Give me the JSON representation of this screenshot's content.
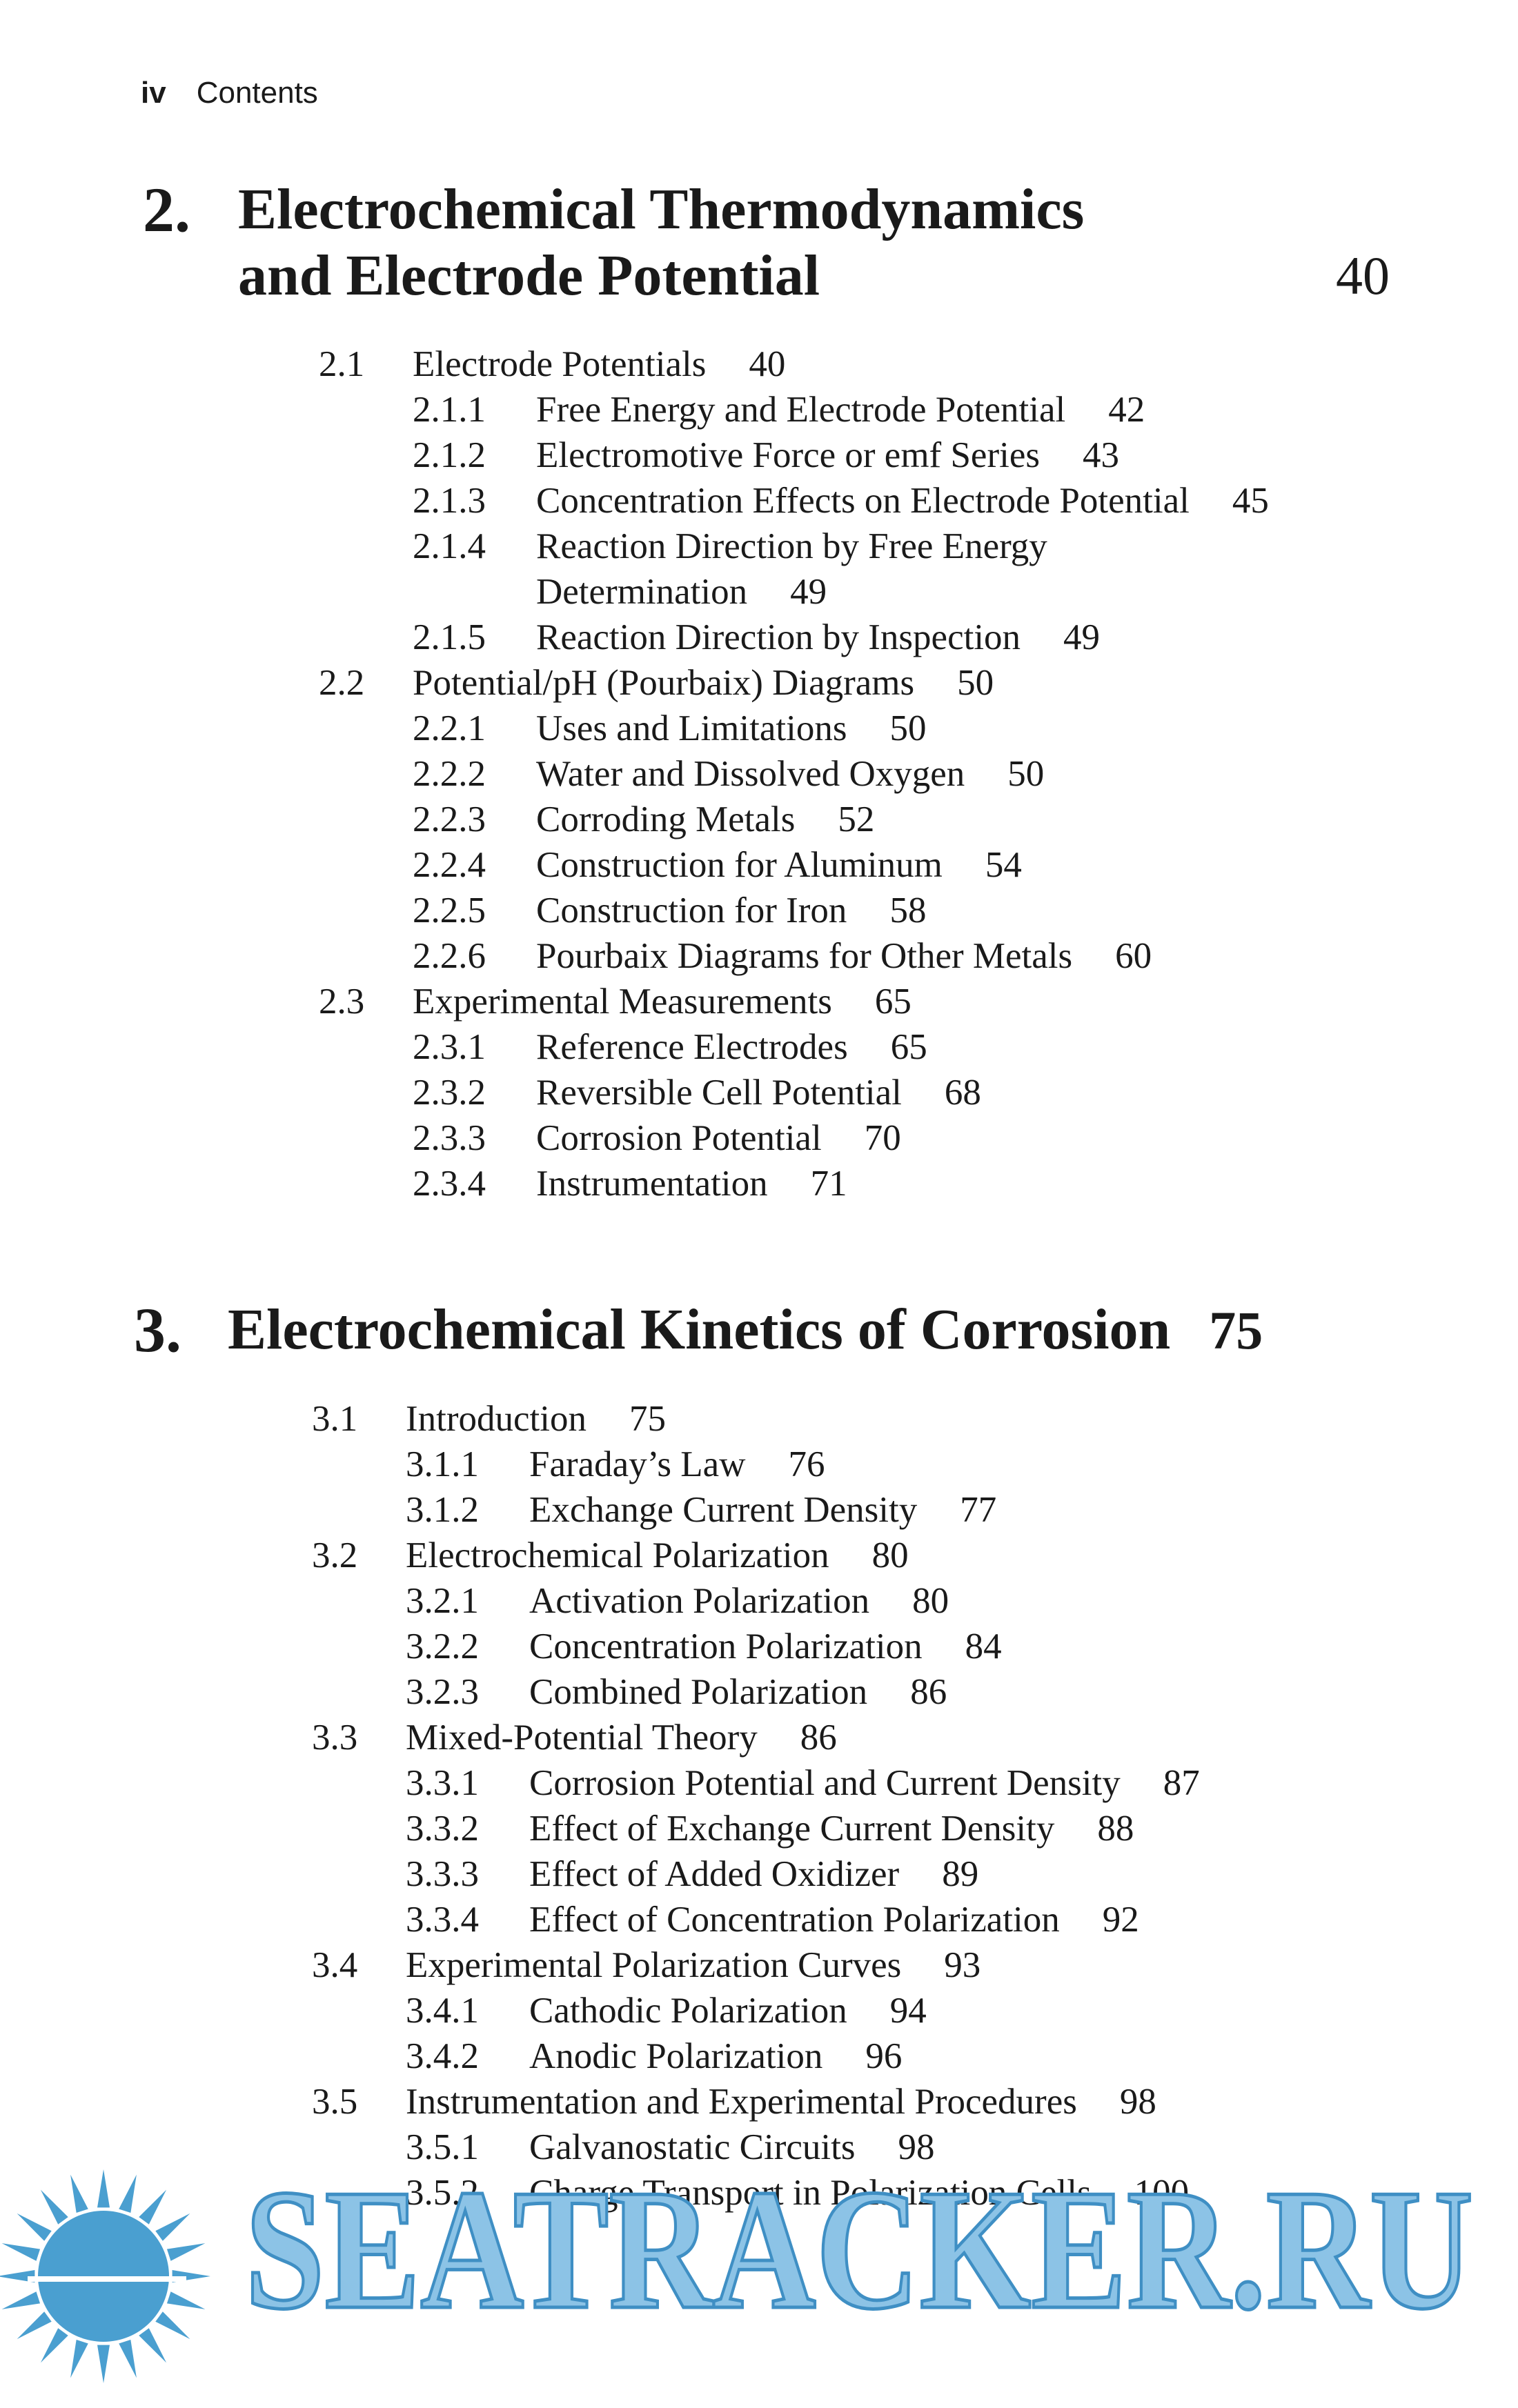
{
  "header": {
    "page": "iv",
    "title": "Contents"
  },
  "chapters": [
    {
      "number": "2.",
      "title": [
        "Electrochemical Thermodynamics",
        "and Electrode Potential"
      ],
      "page": 40,
      "sections": [
        {
          "number": "2.1",
          "title": "Electrode Potentials",
          "page": 40,
          "subsections": [
            {
              "number": "2.1.1",
              "title": "Free Energy and Electrode Potential",
              "page": 42
            },
            {
              "number": "2.1.2",
              "title": "Electromotive Force or emf Series",
              "page": 43
            },
            {
              "number": "2.1.3",
              "title": "Concentration Effects on Electrode Potential",
              "page": 45
            },
            {
              "number": "2.1.4",
              "title": [
                "Reaction Direction by Free Energy",
                "Determination"
              ],
              "page": 49
            },
            {
              "number": "2.1.5",
              "title": "Reaction Direction by Inspection",
              "page": 49
            }
          ]
        },
        {
          "number": "2.2",
          "title": "Potential/pH (Pourbaix) Diagrams",
          "page": 50,
          "subsections": [
            {
              "number": "2.2.1",
              "title": "Uses and Limitations",
              "page": 50
            },
            {
              "number": "2.2.2",
              "title": "Water and Dissolved Oxygen",
              "page": 50
            },
            {
              "number": "2.2.3",
              "title": "Corroding Metals",
              "page": 52
            },
            {
              "number": "2.2.4",
              "title": "Construction for Aluminum",
              "page": 54
            },
            {
              "number": "2.2.5",
              "title": "Construction for Iron",
              "page": 58
            },
            {
              "number": "2.2.6",
              "title": "Pourbaix Diagrams for Other Metals",
              "page": 60
            }
          ]
        },
        {
          "number": "2.3",
          "title": "Experimental Measurements",
          "page": 65,
          "subsections": [
            {
              "number": "2.3.1",
              "title": "Reference Electrodes",
              "page": 65
            },
            {
              "number": "2.3.2",
              "title": "Reversible Cell Potential",
              "page": 68
            },
            {
              "number": "2.3.3",
              "title": "Corrosion Potential",
              "page": 70
            },
            {
              "number": "2.3.4",
              "title": "Instrumentation",
              "page": 71
            }
          ]
        }
      ]
    },
    {
      "number": "3.",
      "title": "Electrochemical Kinetics of Corrosion",
      "page": 75,
      "sections": [
        {
          "number": "3.1",
          "title": "Introduction",
          "page": 75,
          "subsections": [
            {
              "number": "3.1.1",
              "title": "Faraday’s Law",
              "page": 76
            },
            {
              "number": "3.1.2",
              "title": "Exchange Current Density",
              "page": 77
            }
          ]
        },
        {
          "number": "3.2",
          "title": "Electrochemical Polarization",
          "page": 80,
          "subsections": [
            {
              "number": "3.2.1",
              "title": "Activation Polarization",
              "page": 80
            },
            {
              "number": "3.2.2",
              "title": "Concentration Polarization",
              "page": 84
            },
            {
              "number": "3.2.3",
              "title": "Combined Polarization",
              "page": 86
            }
          ]
        },
        {
          "number": "3.3",
          "title": "Mixed-Potential Theory",
          "page": 86,
          "subsections": [
            {
              "number": "3.3.1",
              "title": "Corrosion Potential and Current Density",
              "page": 87
            },
            {
              "number": "3.3.2",
              "title": "Effect of Exchange Current Density",
              "page": 88
            },
            {
              "number": "3.3.3",
              "title": "Effect of Added Oxidizer",
              "page": 89
            },
            {
              "number": "3.3.4",
              "title": "Effect of Concentration Polarization",
              "page": 92
            }
          ]
        },
        {
          "number": "3.4",
          "title": "Experimental Polarization Curves",
          "page": 93,
          "subsections": [
            {
              "number": "3.4.1",
              "title": "Cathodic Polarization",
              "page": 94
            },
            {
              "number": "3.4.2",
              "title": "Anodic Polarization",
              "page": 96
            }
          ]
        },
        {
          "number": "3.5",
          "title": "Instrumentation and Experimental Procedures",
          "page": 98,
          "subsections": [
            {
              "number": "3.5.1",
              "title": "Galvanostatic Circuits",
              "page": 98
            },
            {
              "number": "3.5.2",
              "title": "Charge Transport in Polarization Cells",
              "page": 100
            }
          ]
        }
      ]
    }
  ],
  "watermark": "SEATRACKER.RU"
}
